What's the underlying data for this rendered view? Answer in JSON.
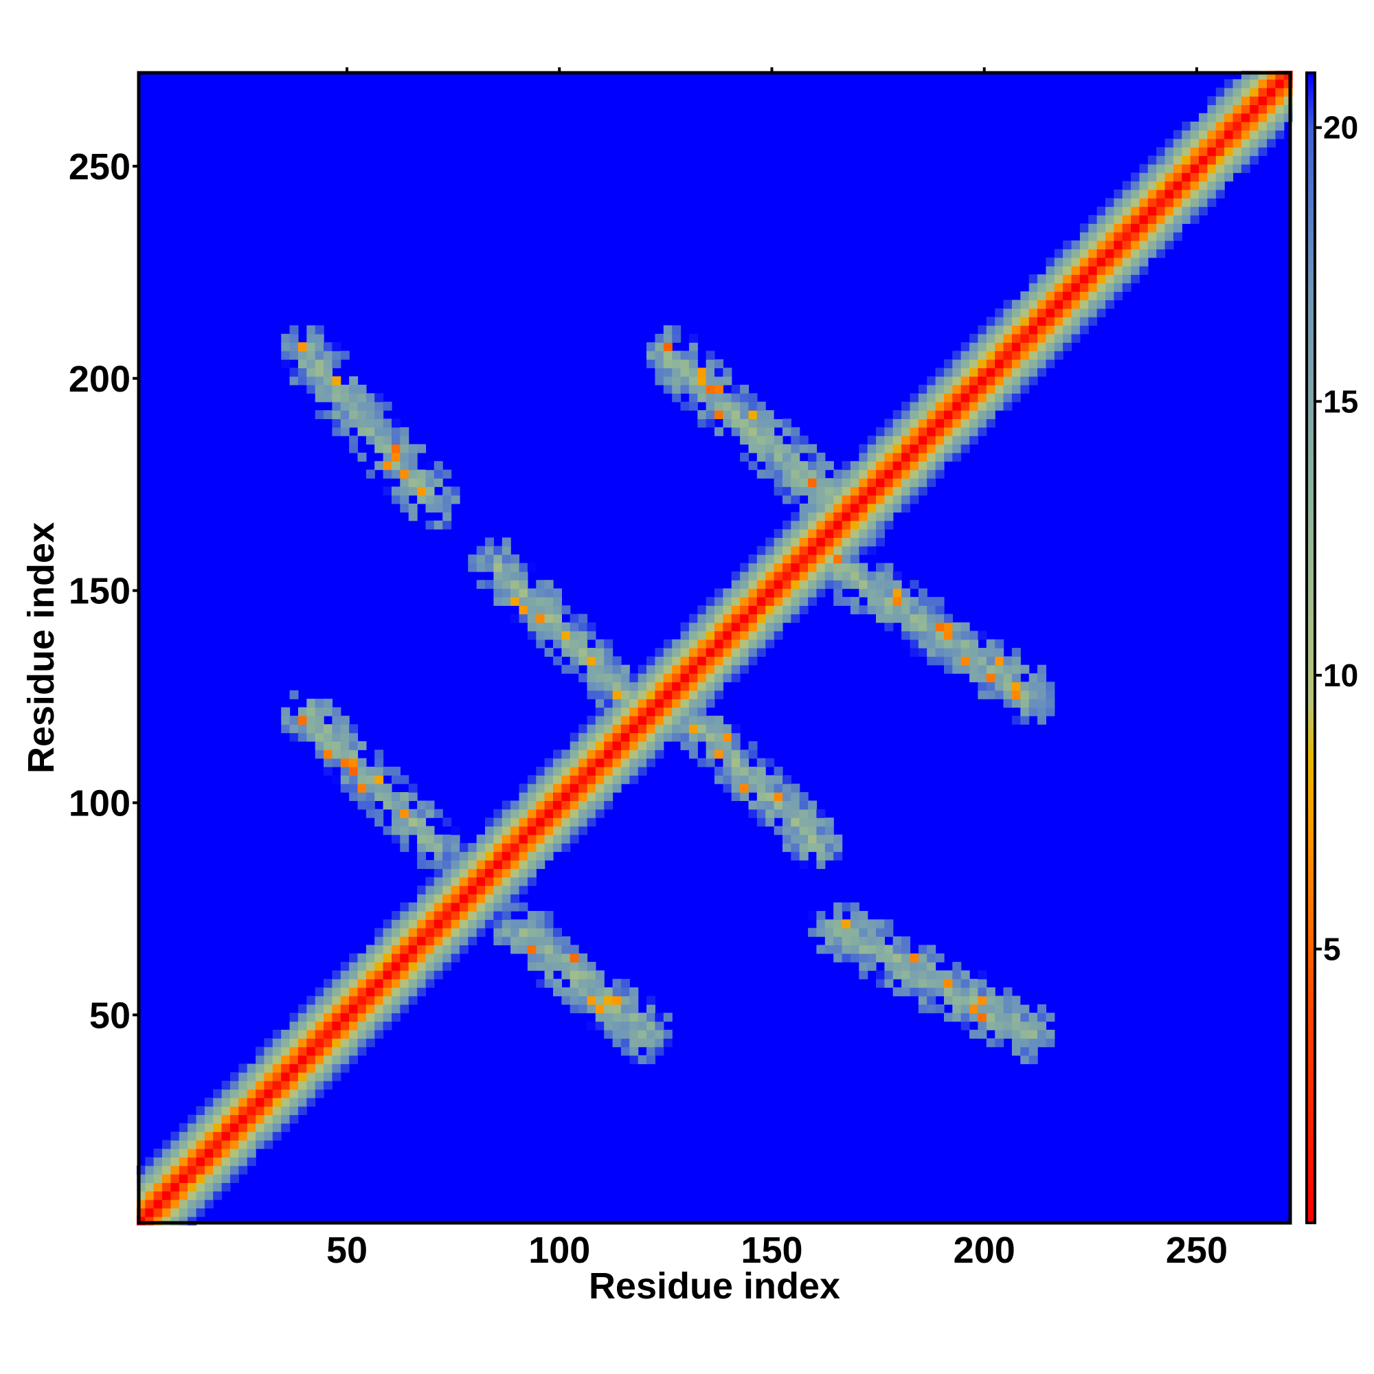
{
  "chart_data": {
    "type": "heatmap",
    "title": "",
    "xlabel": "Residue index",
    "ylabel": "Residue index",
    "xlim": [
      1,
      272
    ],
    "ylim": [
      1,
      272
    ],
    "x_ticks": [
      50,
      100,
      150,
      200,
      250
    ],
    "y_ticks": [
      50,
      100,
      150,
      200,
      250
    ],
    "colorbar": {
      "range": [
        0,
        21
      ],
      "ticks": [
        5,
        10,
        15,
        20
      ],
      "stops": [
        {
          "value": 0,
          "color": "#ff0000"
        },
        {
          "value": 4,
          "color": "#ff4a00"
        },
        {
          "value": 7,
          "color": "#ff9500"
        },
        {
          "value": 8.5,
          "color": "#e6b800"
        },
        {
          "value": 9.5,
          "color": "#b8c47a"
        },
        {
          "value": 13,
          "color": "#8fb59a"
        },
        {
          "value": 17,
          "color": "#6f97b8"
        },
        {
          "value": 20,
          "color": "#3f5fd8"
        },
        {
          "value": 21,
          "color": "#0000ff"
        }
      ]
    },
    "diagonal": {
      "from": 1,
      "to": 272,
      "description_value": 0
    },
    "contact_bands": [
      {
        "x": [
          40,
          70
        ],
        "y": [
          205,
          170
        ]
      },
      {
        "x": [
          40,
          70
        ],
        "y": [
          120,
          90
        ]
      },
      {
        "x": [
          85,
          120
        ],
        "y": [
          155,
          120
        ]
      },
      {
        "x": [
          90,
          120
        ],
        "y": [
          70,
          45
        ]
      },
      {
        "x": [
          125,
          170
        ],
        "y": [
          205,
          165
        ]
      },
      {
        "x": [
          130,
          160
        ],
        "y": [
          120,
          90
        ]
      },
      {
        "x": [
          165,
          210
        ],
        "y": [
          155,
          125
        ]
      },
      {
        "x": [
          165,
          210
        ],
        "y": [
          70,
          45
        ]
      }
    ],
    "background_value": 21
  }
}
